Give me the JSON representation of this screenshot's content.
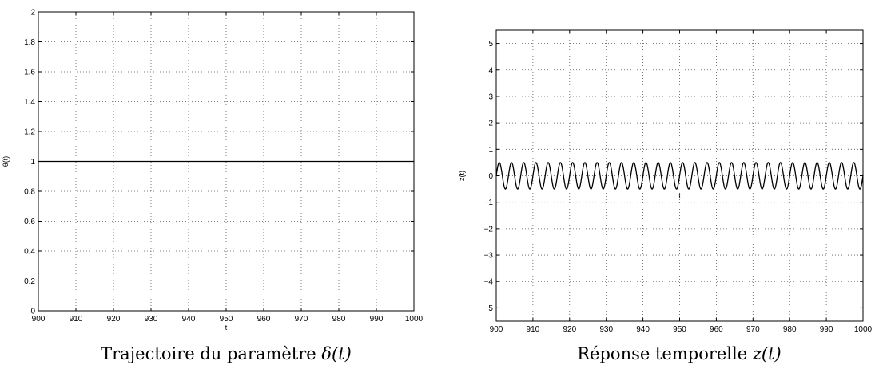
{
  "chart_data": [
    {
      "type": "line",
      "xlabel": "t",
      "ylabel": "θ(t)",
      "caption": {
        "text": "Trajectoire du paramètre ",
        "variable": "δ(t)"
      },
      "xlim": [
        900,
        1000
      ],
      "ylim": [
        0,
        2
      ],
      "xticks": [
        900,
        910,
        920,
        930,
        940,
        950,
        960,
        970,
        980,
        990,
        1000
      ],
      "yticks": [
        0,
        0.2,
        0.4,
        0.6,
        0.8,
        1,
        1.2,
        1.4,
        1.6,
        1.8,
        2
      ],
      "ytick_labels": [
        "0",
        "0.2",
        "0.4",
        "0.6",
        "0.8",
        "1",
        "1.2",
        "1.4",
        "1.6",
        "1.8",
        "2"
      ],
      "grid": true,
      "series": [
        {
          "x": [
            900,
            1000
          ],
          "y": [
            1,
            1
          ]
        }
      ]
    },
    {
      "type": "line",
      "xlabel": "t",
      "ylabel": "z(t)",
      "caption": {
        "text": "Réponse temporelle ",
        "variable": "z(t)"
      },
      "xlim": [
        900,
        1000
      ],
      "ylim": [
        -5.5,
        5.5
      ],
      "xticks": [
        900,
        910,
        920,
        930,
        940,
        950,
        960,
        970,
        980,
        990,
        1000
      ],
      "yticks": [
        -5,
        -4,
        -3,
        -2,
        -1,
        0,
        1,
        2,
        3,
        4,
        5
      ],
      "ytick_labels": [
        "−5",
        "−4",
        "−3",
        "−2",
        "−1",
        "0",
        "1",
        "2",
        "3",
        "4",
        "5"
      ],
      "grid": true,
      "series": [
        {
          "function": "sine",
          "amplitude": 0.5,
          "period": 3.333,
          "x_start": 900,
          "x_end": 1000
        }
      ]
    }
  ]
}
